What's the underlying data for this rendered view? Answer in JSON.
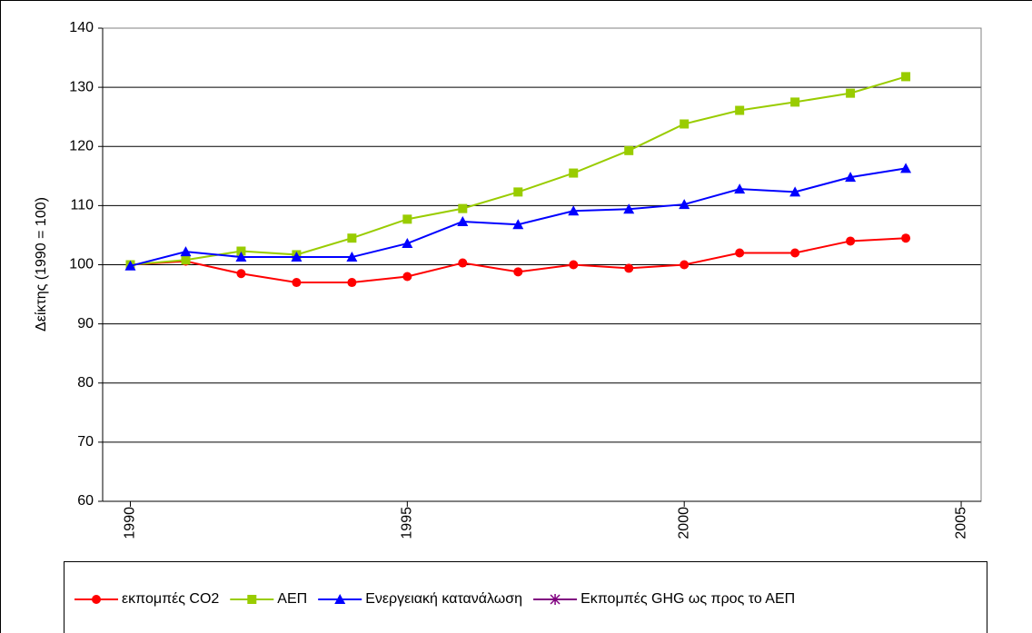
{
  "chart_data": {
    "type": "line",
    "y_label": "Δείκτης (1990 = 100)",
    "x": [
      1990,
      1991,
      1992,
      1993,
      1994,
      1995,
      1996,
      1997,
      1998,
      1999,
      2000,
      2001,
      2002,
      2003,
      2004
    ],
    "series": [
      {
        "name": "εκπομπές CO2",
        "color": "#ff0000",
        "marker": "circle",
        "values": [
          100,
          100.6,
          98.5,
          97,
          97,
          98,
          100.3,
          98.8,
          100,
          99.4,
          100,
          102,
          102,
          104,
          104.5
        ]
      },
      {
        "name": "ΑΕΠ",
        "color": "#99cc00",
        "marker": "square",
        "values": [
          100,
          100.8,
          102.3,
          101.7,
          104.5,
          107.7,
          109.5,
          112.3,
          115.5,
          119.3,
          123.8,
          126.1,
          127.5,
          129,
          131.8
        ]
      },
      {
        "name": "Ενεργειακή κατανάλωση",
        "color": "#0000ff",
        "marker": "triangle",
        "values": [
          99.8,
          102.2,
          101.3,
          101.3,
          101.3,
          103.6,
          107.3,
          106.8,
          109.1,
          109.4,
          110.2,
          112.8,
          112.3,
          114.8,
          116.3
        ]
      },
      {
        "name": "Εκπομπές GHG ως προς το ΑΕΠ",
        "color": "#800080",
        "marker": "star",
        "values": [
          null,
          null,
          null,
          null,
          null,
          null,
          null,
          null,
          null,
          null,
          null,
          null,
          null,
          null,
          null
        ]
      }
    ],
    "xlim": [
      1989.5,
      2005.36
    ],
    "xticks": [
      1990,
      1995,
      2000,
      2005
    ],
    "ylim": [
      60,
      140
    ],
    "yticks": [
      60,
      70,
      80,
      90,
      100,
      110,
      120,
      130,
      140
    ],
    "grid": true,
    "legend": "bottom"
  }
}
